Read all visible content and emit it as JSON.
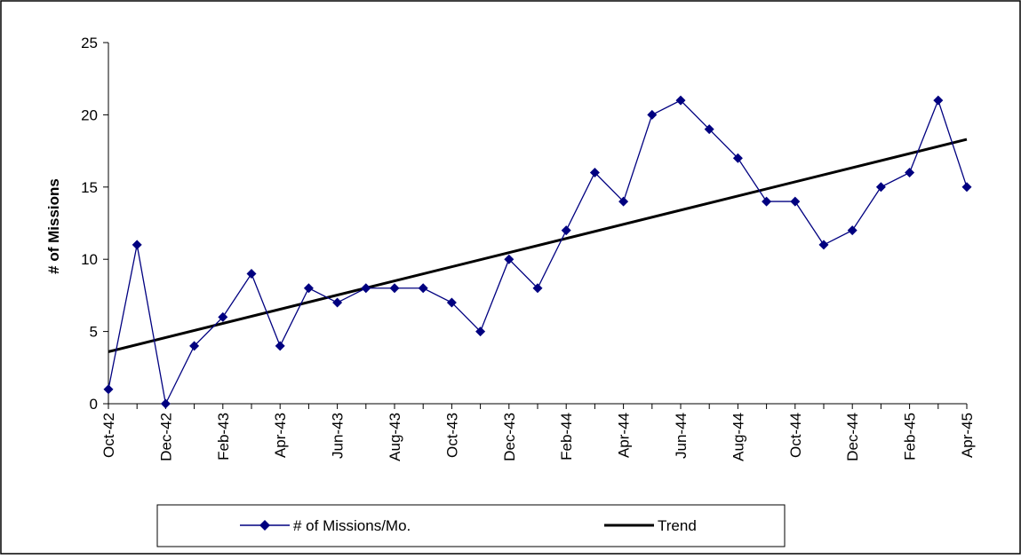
{
  "chart_data": {
    "type": "line",
    "ylabel": "# of Missions",
    "xlabel": "",
    "title": "",
    "ylim": [
      0,
      25
    ],
    "yticks": [
      0,
      5,
      10,
      15,
      20,
      25
    ],
    "grid": false,
    "legend_position": "bottom",
    "categories": [
      "Oct-42",
      "Nov-42",
      "Dec-42",
      "Jan-43",
      "Feb-43",
      "Mar-43",
      "Apr-43",
      "May-43",
      "Jun-43",
      "Jul-43",
      "Aug-43",
      "Sep-43",
      "Oct-43",
      "Nov-43",
      "Dec-43",
      "Jan-44",
      "Feb-44",
      "Mar-44",
      "Apr-44",
      "May-44",
      "Jun-44",
      "Jul-44",
      "Aug-44",
      "Sep-44",
      "Oct-44",
      "Nov-44",
      "Dec-44",
      "Jan-45",
      "Feb-45",
      "Mar-45",
      "Apr-45"
    ],
    "tick_labels": [
      "Oct-42",
      "Dec-42",
      "Feb-43",
      "Apr-43",
      "Jun-43",
      "Aug-43",
      "Oct-43",
      "Dec-43",
      "Feb-44",
      "Apr-44",
      "Jun-44",
      "Aug-44",
      "Oct-44",
      "Dec-44",
      "Feb-45",
      "Apr-45"
    ],
    "series": [
      {
        "name": "# of Missions/Mo.",
        "color": "#000080",
        "marker": "diamond",
        "values": [
          1,
          11,
          0,
          4,
          6,
          9,
          4,
          8,
          7,
          8,
          8,
          8,
          7,
          5,
          10,
          8,
          12,
          16,
          14,
          20,
          21,
          19,
          17,
          14,
          14,
          11,
          12,
          15,
          16,
          21,
          15
        ]
      },
      {
        "name": "Trend",
        "color": "#000000",
        "marker": "none",
        "values_endpoints": [
          3.6,
          18.3
        ]
      }
    ]
  }
}
